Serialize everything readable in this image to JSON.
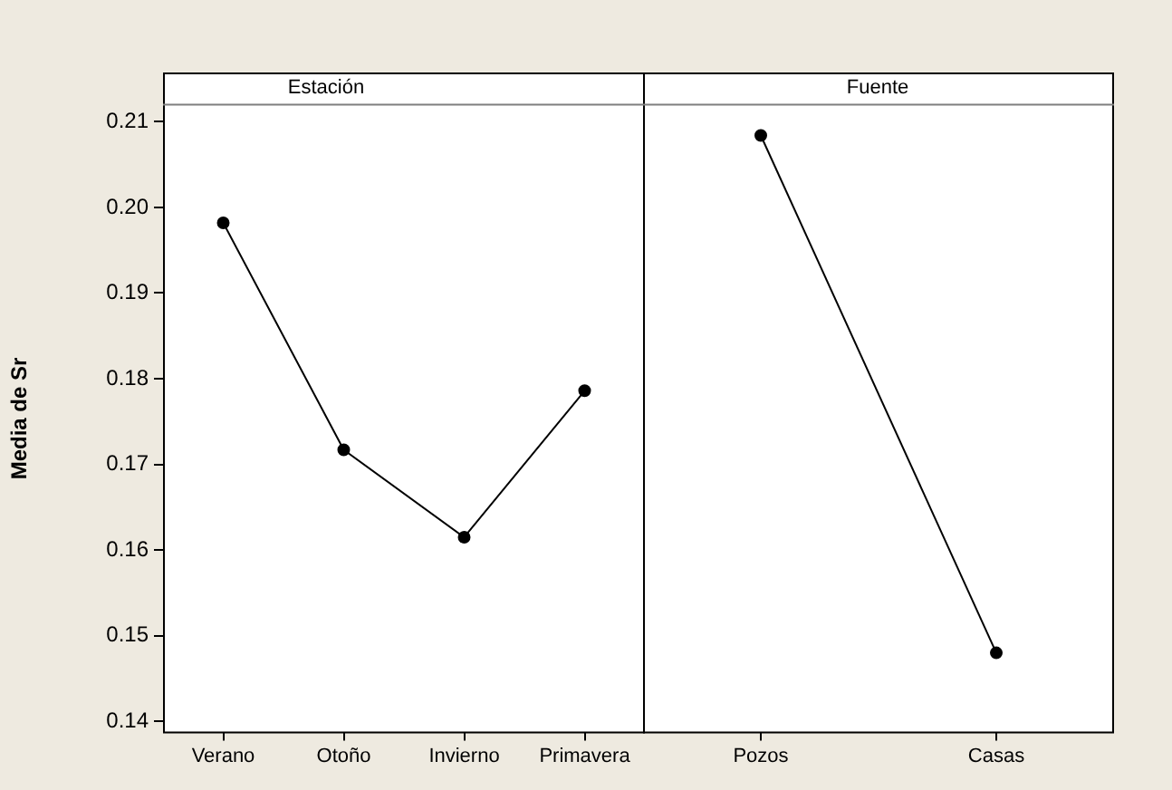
{
  "chart_data": [
    {
      "type": "line",
      "title": "Estación",
      "ylabel": "Media de Sr",
      "categories": [
        "Verano",
        "Otoño",
        "Invierno",
        "Primavera"
      ],
      "values": [
        0.1982,
        0.1717,
        0.1615,
        0.1786
      ],
      "color": "#000000",
      "ylim": [
        0.1388,
        0.2119
      ],
      "yticks": [
        0.14,
        0.15,
        0.16,
        0.17,
        0.18,
        0.19,
        {
          "value": 0.2,
          "label": "0.20"
        },
        0.21
      ],
      "grid": false,
      "marker": "circle"
    },
    {
      "type": "line",
      "title": "Fuente",
      "categories": [
        "Pozos",
        "Casas"
      ],
      "values": [
        0.2084,
        0.148
      ],
      "color": "#000000",
      "ylim": [
        0.1388,
        0.2119
      ],
      "grid": false,
      "marker": "circle",
      "tick_labels": "x"
    }
  ]
}
